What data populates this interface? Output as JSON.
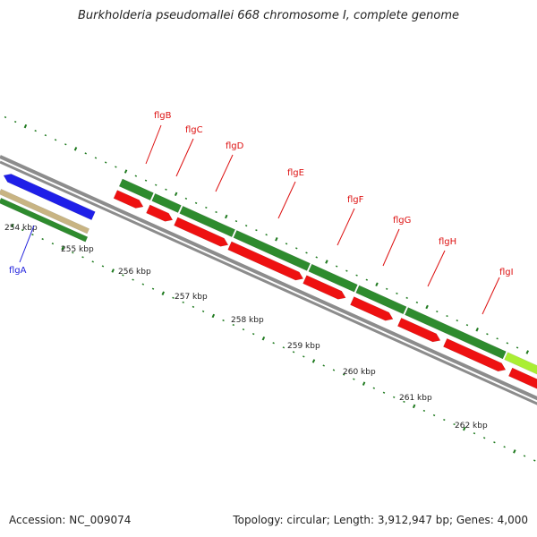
{
  "title": "Burkholderia pseudomallei 668 chromosome I, complete genome",
  "accession_text": "Accession: NC_009074",
  "topology_text": "Topology: circular; Length: 3,912,947 bp; Genes: 4,000",
  "colors": {
    "forward_cds": "#2e8b2e",
    "reverse_cds": "#ee1111",
    "blue_gene": "#1f1fe8",
    "tan_track": "#c8b483",
    "backbone": "#8c8c8c",
    "gene_label": "#dd1111",
    "flga_label": "#2222dd",
    "tick": "#1f7a1f",
    "light_green": "#aaee33"
  },
  "kbp_ticks": [
    "254 kbp",
    "255 kbp",
    "256 kbp",
    "257 kbp",
    "258 kbp",
    "259 kbp",
    "260 kbp",
    "261 kbp",
    "262 kbp"
  ],
  "gene_labels": [
    "flgB",
    "flgC",
    "flgD",
    "flgE",
    "flgF",
    "flgG",
    "flgH",
    "flgI"
  ],
  "flga_label": "flgA"
}
